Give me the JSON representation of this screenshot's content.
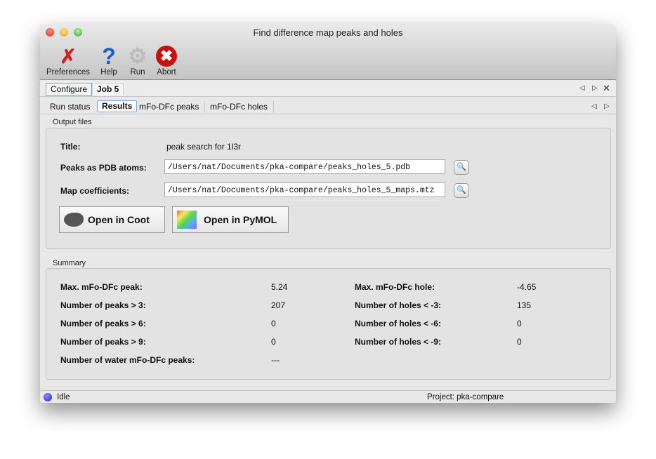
{
  "window": {
    "title": "Find difference map peaks and holes"
  },
  "toolbar": [
    {
      "label": "Preferences",
      "icon": "wrench-screwdriver-icon"
    },
    {
      "label": "Help",
      "icon": "question-icon"
    },
    {
      "label": "Run",
      "icon": "gear-icon"
    },
    {
      "label": "Abort",
      "icon": "stop-x-icon"
    }
  ],
  "tabs": [
    {
      "label": "Configure"
    },
    {
      "label": "Job 5"
    }
  ],
  "subtabs": [
    {
      "label": "Run status"
    },
    {
      "label": "Results"
    },
    {
      "label": "mFo-DFc peaks"
    },
    {
      "label": "mFo-DFc holes"
    }
  ],
  "output": {
    "group_label": "Output files",
    "title_label": "Title:",
    "title_value": "peak search for 1l3r",
    "pdb_label": "Peaks as PDB atoms:",
    "pdb_value": "/Users/nat/Documents/pka-compare/peaks_holes_5.pdb",
    "map_label": "Map coefficients:",
    "map_value": "/Users/nat/Documents/pka-compare/peaks_holes_5_maps.mtz",
    "coot_label": "Open in Coot",
    "pymol_label": "Open in PyMOL"
  },
  "summary": {
    "group_label": "Summary",
    "left": [
      {
        "label": "Max. mFo-DFc peak:",
        "value": "5.24"
      },
      {
        "label": "Number of peaks > 3:",
        "value": "207"
      },
      {
        "label": "Number of peaks > 6:",
        "value": "0"
      },
      {
        "label": "Number of peaks > 9:",
        "value": "0"
      },
      {
        "label": "Number of water mFo-DFc peaks:",
        "value": "---"
      }
    ],
    "right": [
      {
        "label": "Max. mFo-DFc hole:",
        "value": "-4.65"
      },
      {
        "label": "Number of holes < -3:",
        "value": "135"
      },
      {
        "label": "Number of holes < -6:",
        "value": "0"
      },
      {
        "label": "Number of holes < -9:",
        "value": "0"
      }
    ]
  },
  "status": {
    "text": "Idle",
    "project": "Project: pka-compare",
    "indicator_color": "#2222cc"
  }
}
